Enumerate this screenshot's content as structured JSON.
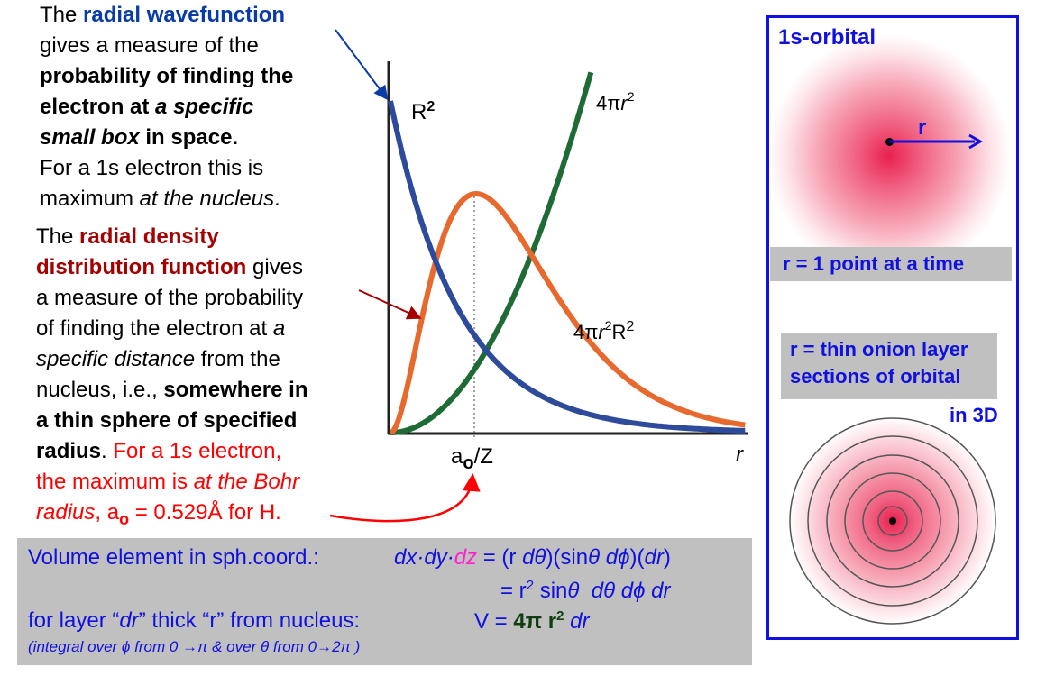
{
  "text1": {
    "l1a": "The ",
    "l1b": "radial wavefunction",
    "l2": "gives a measure of the",
    "l3": "probability of finding the",
    "l4a": "electron at ",
    "l4b": "a specific",
    "l5a": "small box",
    "l5b": " in space.",
    "l6": "For a 1s electron this is",
    "l7a": "maximum ",
    "l7b": "at the nucleus",
    "l7c": "."
  },
  "text2": {
    "l1a": "The ",
    "l1b": "radial density",
    "l2a": "distribution function",
    "l2b": " gives",
    "l3": "a measure of the probability",
    "l4a": "of finding the electron at ",
    "l4b": "a",
    "l5a": "specific distance",
    "l5b": " from the",
    "l6a": "nucleus, i.e., ",
    "l6b": "somewhere in",
    "l7": "a thin sphere of specified",
    "l8a": "radius",
    "l8b": ". ",
    "l8c": "For a 1s electron,",
    "l9a": "the maximum is ",
    "l9b": "at the Bohr",
    "l10a": "radius",
    ", ": "",
    "l10b": ", a",
    "l10c": "o",
    "l10d": " = 0.529Å for H."
  },
  "chart_data": {
    "type": "line",
    "xlabel": "r",
    "x_tick_labels": [
      "a",
      "o",
      "/Z"
    ],
    "grid": false,
    "series": [
      {
        "name": "R²",
        "color": "#2e4b9b",
        "shape": "decaying exponential, maximum at r = 0"
      },
      {
        "name": "4πr²",
        "color": "#1e6b35",
        "shape": "parabola rising from 0"
      },
      {
        "name": "4πr²R²",
        "color": "#e8692e",
        "shape": "peak at r = a0/Z, zero at r = 0"
      }
    ],
    "labels": {
      "r2": "R",
      "r2sup": "2",
      "g_a": "4π",
      "g_r": "r",
      "g_sup": "2",
      "o_a": "4π",
      "o_r": "r",
      "o_sup": "2",
      "o_b": "R",
      "o_sup2": "2"
    }
  },
  "box": {
    "l1a": "Volume element in sph.coord.:",
    "l1b": "dx·dy·",
    "l1c": "dz",
    "l1d": " = (r ",
    "l1e": "dθ",
    "l1f": ")(sin",
    "l1g": "θ dϕ",
    "l1h": ")(",
    "l1i": "dr",
    "l1j": ")",
    "l2a": "= r",
    "l2b": "2",
    "l2c": " sin",
    "l2d": "θ",
    "l2e": "  dθ dϕ dr",
    "l3a": "for layer “",
    "l3b": "dr",
    "l3c": "” thick “r” from nucleus:",
    "l3d": "V = ",
    "l3e": "4π r",
    "l3f": "2",
    "l3g": " dr",
    "l4": "(integral over ϕ from 0 →π & over θ from 0→2π )"
  },
  "panel": {
    "title": "1s-orbital",
    "r_label": "r",
    "point_label": "r  = 1 point at a time",
    "layer_l1": "r = thin onion layer",
    "layer_l2": "sections of orbital",
    "in3d": "in 3D",
    "border_color": "#1010e0",
    "orbital_color": "#e8204f"
  }
}
